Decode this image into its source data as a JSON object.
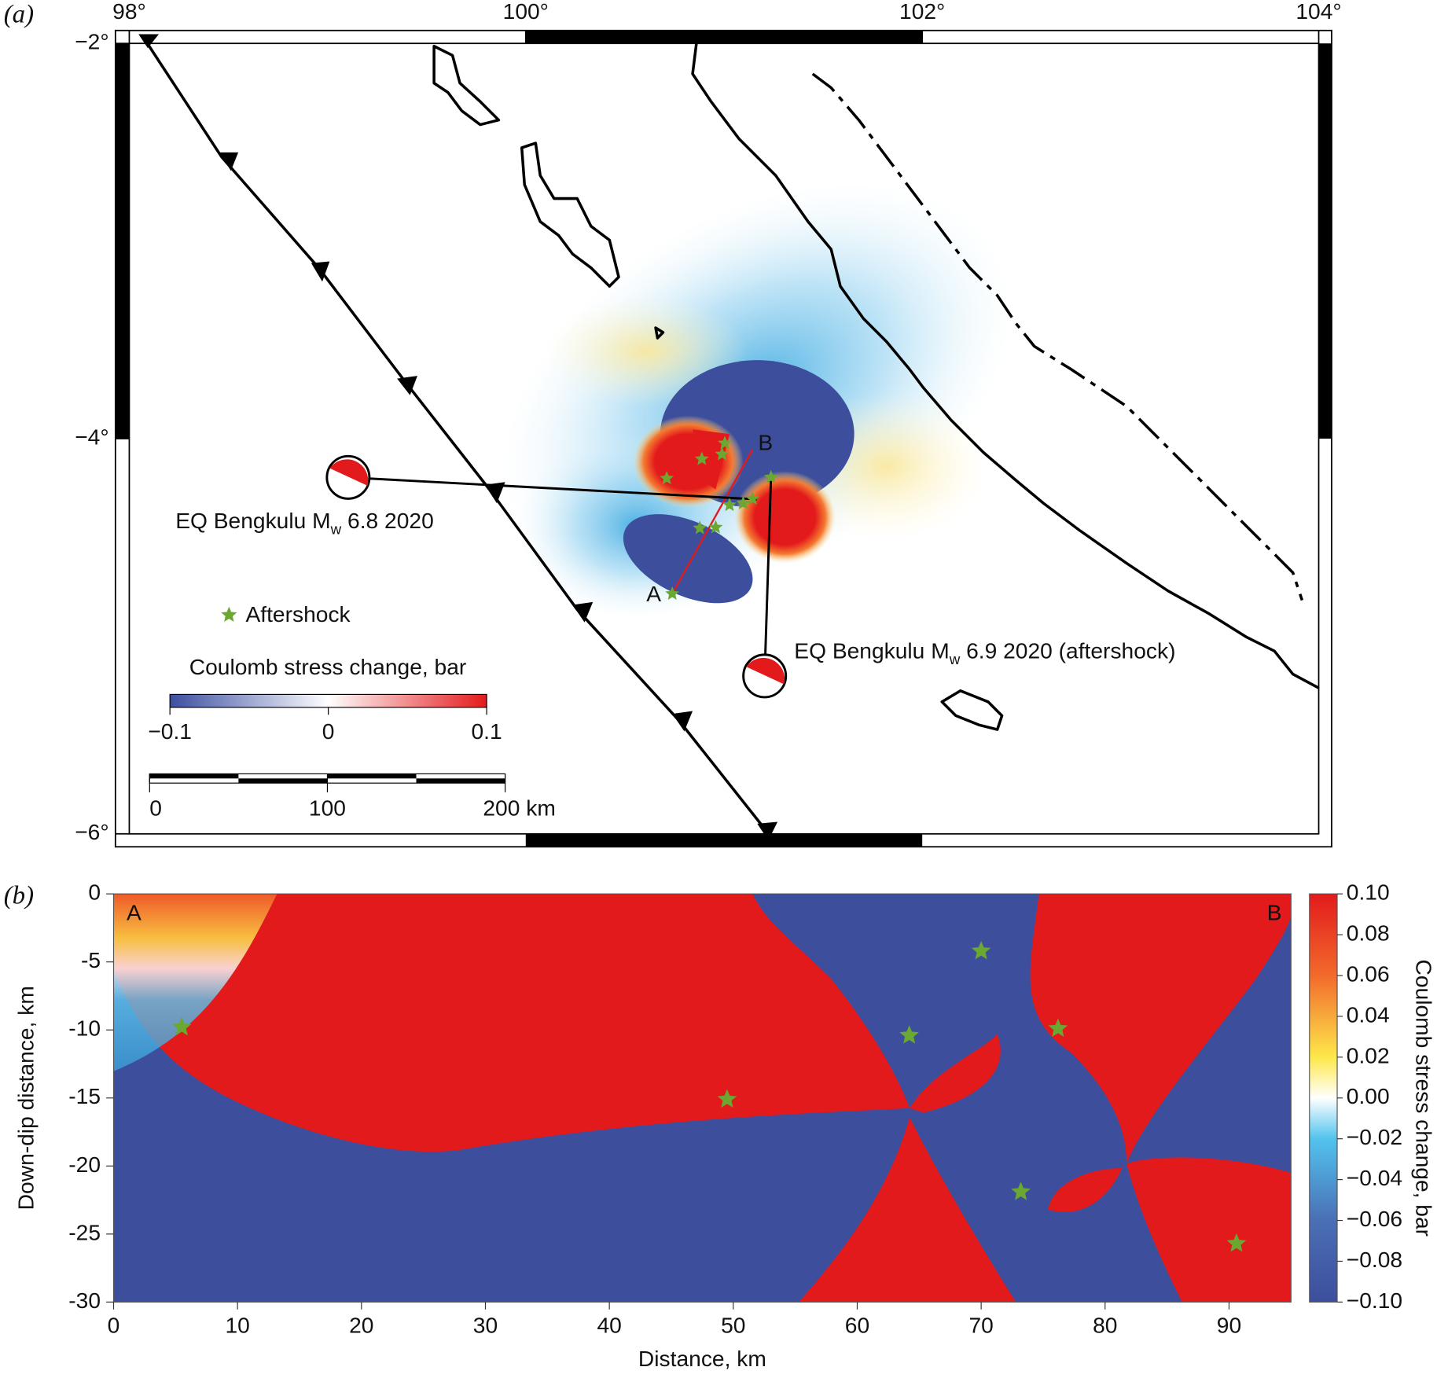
{
  "chart_data": [
    {
      "type": "map",
      "panel_label": "(a)",
      "xlim": [
        98,
        104
      ],
      "ylim": [
        -6,
        -2
      ],
      "xticks": [
        {
          "value": 98,
          "label": "98°"
        },
        {
          "value": 100,
          "label": "100°"
        },
        {
          "value": 102,
          "label": "102°"
        },
        {
          "value": 104,
          "label": "104°"
        }
      ],
      "yticks": [
        {
          "value": -2,
          "label": "−2°"
        },
        {
          "value": -4,
          "label": "−4°"
        },
        {
          "value": -6,
          "label": "−6°"
        }
      ],
      "events": [
        {
          "text_parts": [
            "EQ Bengkulu M",
            "w",
            " 6.8 2020"
          ],
          "lon": 101.165,
          "lat": -4.307
        },
        {
          "text_parts": [
            "EQ Bengkulu M",
            "w",
            " 6.9 2020 (aftershock)"
          ],
          "lon": 101.237,
          "lat": -4.196
        }
      ],
      "profile": {
        "start_label": "A",
        "end_label": "B",
        "lon": [
          100.739,
          101.144
        ],
        "lat": [
          -4.785,
          -4.056
        ]
      },
      "aftershocks": {
        "name": "Aftershock",
        "color": "#6aa832",
        "lon": [
          100.711,
          100.888,
          101.004,
          100.99,
          101.237,
          101.028,
          101.097,
          101.144,
          100.878,
          100.958,
          100.739
        ],
        "lat": [
          -4.201,
          -4.103,
          -4.023,
          -4.079,
          -4.196,
          -4.336,
          -4.327,
          -4.304,
          -4.453,
          -4.449,
          -4.785
        ]
      },
      "colorbar": {
        "label": "Coulomb stress change, bar",
        "lim": [
          -0.1,
          0.1
        ],
        "ticks": [
          {
            "value": -0.1,
            "label": "−0.1"
          },
          0,
          0.1
        ]
      },
      "scale_bar": {
        "lim": [
          0,
          200
        ],
        "ticks": [
          0,
          100,
          {
            "value": 200,
            "label": "200 km"
          }
        ]
      }
    },
    {
      "type": "heatmap",
      "panel_label": "(b)",
      "x_label": "Distance, km",
      "y_label": "Down-dip distance, km",
      "start_label": "A",
      "end_label": "B",
      "xlim": [
        0,
        95
      ],
      "ylim": [
        -30,
        0
      ],
      "xticks": [
        0,
        10,
        20,
        30,
        40,
        50,
        60,
        70,
        80,
        90
      ],
      "yticks": [
        0,
        -5,
        -10,
        -15,
        -20,
        -25,
        -30
      ],
      "aftershocks": {
        "color": "#6aa832",
        "x": [
          5.5,
          49.5,
          64.2,
          70,
          76.2,
          73.2,
          90.6
        ],
        "y": [
          -9.8,
          -15.1,
          -10.4,
          -4.2,
          -9.9,
          -21.9,
          -25.7
        ]
      },
      "colorbar": {
        "label": "Coulomb stress change, bar",
        "lim": [
          -0.1,
          0.1
        ],
        "ticks": [
          {
            "value": 0.1,
            "label": "0.10"
          },
          {
            "value": 0.08,
            "label": "0.08"
          },
          {
            "value": 0.06,
            "label": "0.06"
          },
          {
            "value": 0.04,
            "label": "0.04"
          },
          {
            "value": 0.02,
            "label": "0.02"
          },
          {
            "value": 0,
            "label": "0.00"
          },
          {
            "value": -0.02,
            "label": "−0.02"
          },
          {
            "value": -0.04,
            "label": "−0.04"
          },
          {
            "value": -0.06,
            "label": "−0.06"
          },
          {
            "value": -0.08,
            "label": "−0.08"
          },
          {
            "value": -0.1,
            "label": "−0.10"
          }
        ]
      }
    }
  ]
}
